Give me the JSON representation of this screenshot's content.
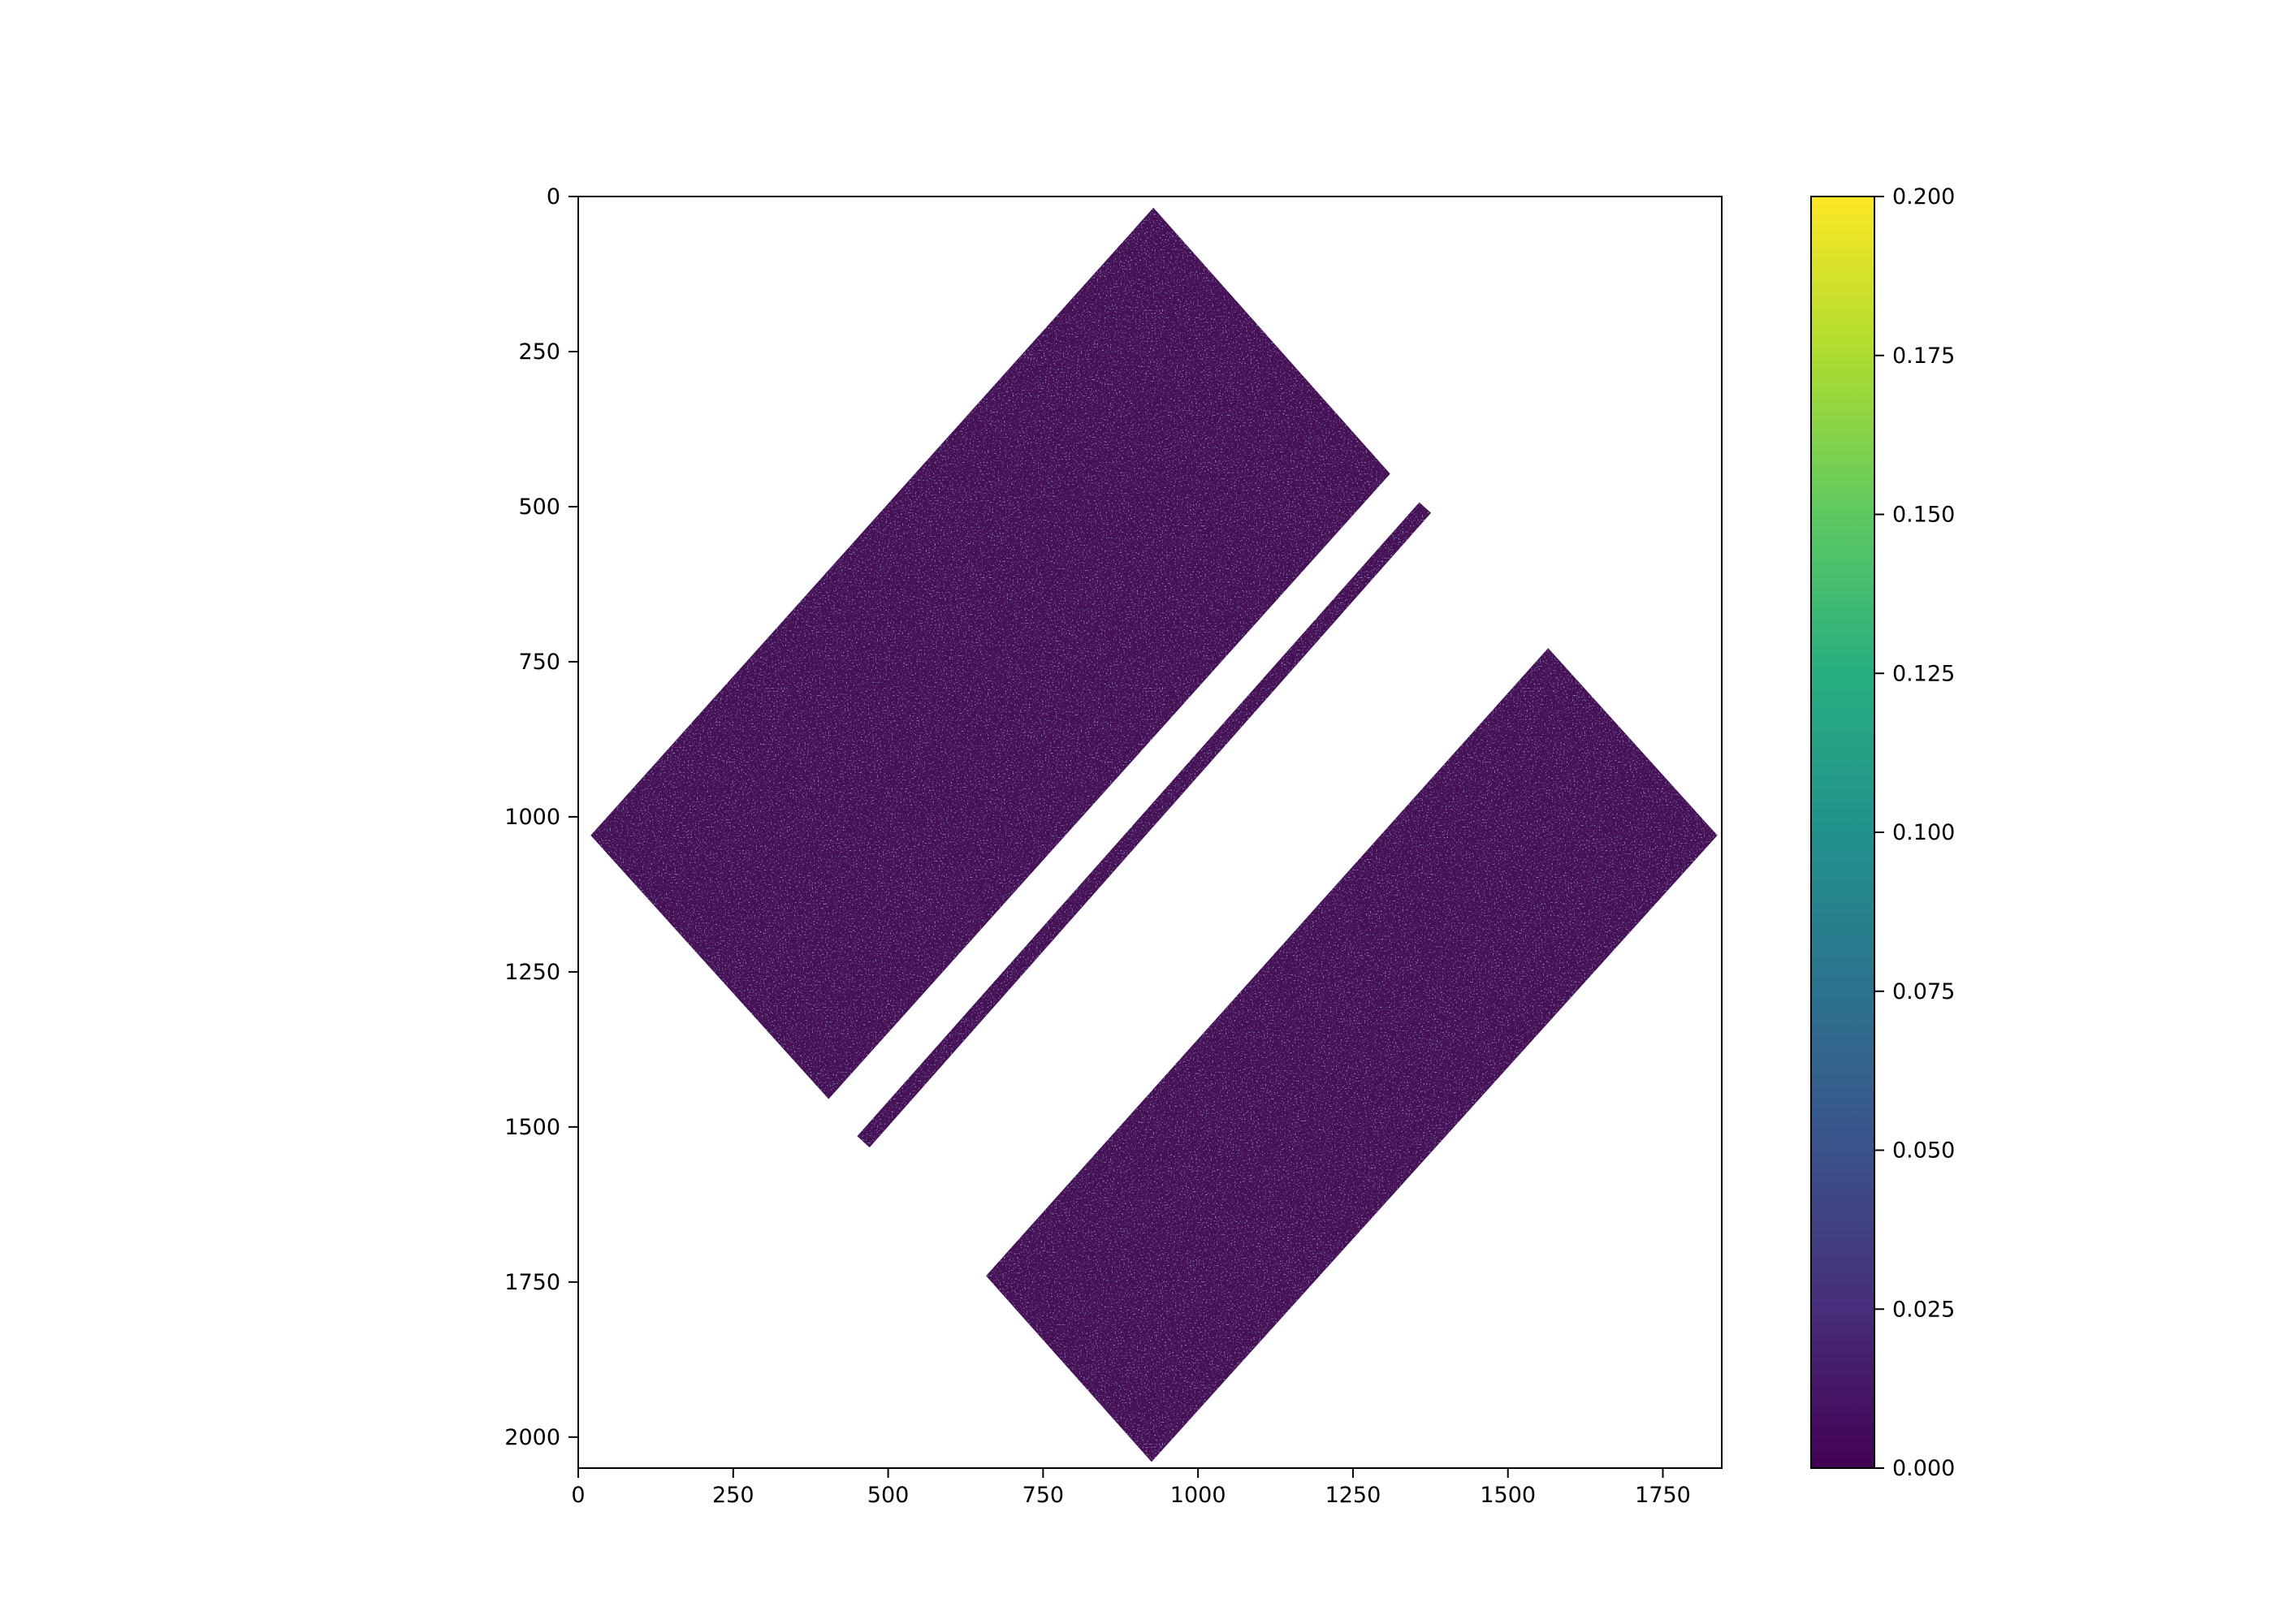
{
  "chart_data": {
    "type": "heatmap",
    "title": "",
    "xlabel": "",
    "ylabel": "",
    "xlim": [
      0,
      1845
    ],
    "ylim": [
      2050,
      0
    ],
    "x_ticks": [
      0,
      250,
      500,
      750,
      1000,
      1250,
      1500,
      1750
    ],
    "y_ticks": [
      0,
      250,
      500,
      750,
      1000,
      1250,
      1500,
      1750,
      2000
    ],
    "x_tick_labels": [
      "0",
      "250",
      "500",
      "750",
      "1000",
      "1250",
      "1500",
      "1750"
    ],
    "y_tick_labels": [
      "0",
      "250",
      "500",
      "750",
      "1000",
      "1250",
      "1500",
      "1750",
      "2000"
    ],
    "colormap": "viridis",
    "colorbar": {
      "range": [
        0.0,
        0.2
      ],
      "ticks": [
        0.0,
        0.025,
        0.05,
        0.075,
        0.1,
        0.125,
        0.15,
        0.175,
        0.2
      ],
      "tick_labels": [
        "0.000",
        "0.025",
        "0.050",
        "0.075",
        "0.100",
        "0.125",
        "0.150",
        "0.175",
        "0.200"
      ]
    },
    "grid": false,
    "background_value": "NaN",
    "typical_value": 0.008,
    "regions": [
      {
        "name": "upper-swath",
        "corners": [
          [
            928,
            18
          ],
          [
            1310,
            447
          ],
          [
            404,
            1455
          ],
          [
            20,
            1030
          ]
        ]
      },
      {
        "name": "center-strip",
        "corners": [
          [
            1376,
            510
          ],
          [
            1357,
            493
          ],
          [
            450,
            1515
          ],
          [
            470,
            1533
          ]
        ]
      },
      {
        "name": "lower-swath",
        "corners": [
          [
            1565,
            728
          ],
          [
            1838,
            1030
          ],
          [
            925,
            2040
          ],
          [
            658,
            1740
          ]
        ]
      }
    ],
    "colors": {
      "low": "#440154",
      "fill": "#451054",
      "texture": "#3b3c8a",
      "high": "#fde725"
    }
  }
}
